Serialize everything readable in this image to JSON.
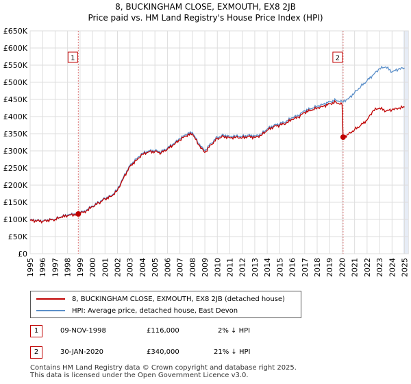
{
  "header": {
    "line1": "8, BUCKINGHAM CLOSE, EXMOUTH, EX8 2JB",
    "line2": "Price paid vs. HM Land Registry's House Price Index (HPI)"
  },
  "chart_data": {
    "type": "line",
    "title": "8, BUCKINGHAM CLOSE, EXMOUTH, EX8 2JB",
    "subtitle": "Price paid vs. HM Land Registry's House Price Index (HPI)",
    "xlabel": "",
    "ylabel": "",
    "xlim": [
      1995,
      2025.3
    ],
    "ylim": [
      0,
      650000
    ],
    "y_ticks": [
      0,
      50000,
      100000,
      150000,
      200000,
      250000,
      300000,
      350000,
      400000,
      450000,
      500000,
      550000,
      600000,
      650000
    ],
    "y_tick_labels": [
      "£0",
      "£50K",
      "£100K",
      "£150K",
      "£200K",
      "£250K",
      "£300K",
      "£350K",
      "£400K",
      "£450K",
      "£500K",
      "£550K",
      "£600K",
      "£650K"
    ],
    "x_ticks": [
      1995,
      1996,
      1997,
      1998,
      1999,
      2000,
      2001,
      2002,
      2003,
      2004,
      2005,
      2006,
      2007,
      2008,
      2009,
      2010,
      2011,
      2012,
      2013,
      2014,
      2015,
      2016,
      2017,
      2018,
      2019,
      2020,
      2021,
      2022,
      2023,
      2024,
      2025
    ],
    "x_tick_labels": [
      "1995",
      "1996",
      "1997",
      "1998",
      "1999",
      "2000",
      "2001",
      "2002",
      "2003",
      "2004",
      "2005",
      "2006",
      "2007",
      "2008",
      "2009",
      "2010",
      "2011",
      "2012",
      "2013",
      "2014",
      "2015",
      "2016",
      "2017",
      "2018",
      "2019",
      "2020",
      "2021",
      "2022",
      "2023",
      "2024",
      "2025"
    ],
    "grid": true,
    "colors": {
      "property": "#c00000",
      "hpi": "#5b8fc9",
      "marker_line": "#dd7777",
      "shade": "#e6ecf6"
    },
    "series": [
      {
        "name": "8, BUCKINGHAM CLOSE, EXMOUTH, EX8 2JB (detached house)",
        "x": [
          1995.0,
          1996.0,
          1997.0,
          1997.5,
          1998.0,
          1998.86,
          1999.5,
          2000.0,
          2000.5,
          2001.0,
          2001.5,
          2002.0,
          2002.5,
          2003.0,
          2003.5,
          2004.0,
          2004.5,
          2005.0,
          2005.5,
          2006.0,
          2006.5,
          2007.0,
          2007.5,
          2008.0,
          2008.5,
          2009.0,
          2009.5,
          2010.0,
          2010.5,
          2011.0,
          2011.5,
          2012.0,
          2012.5,
          2013.0,
          2013.5,
          2014.0,
          2014.5,
          2015.0,
          2015.5,
          2016.0,
          2016.5,
          2017.0,
          2017.5,
          2018.0,
          2018.5,
          2019.0,
          2019.5,
          2020.0,
          2020.08,
          2020.5,
          2021.0,
          2021.5,
          2022.0,
          2022.5,
          2023.0,
          2023.5,
          2024.0,
          2024.5,
          2025.0
        ],
        "values": [
          97000,
          95000,
          100000,
          107000,
          111000,
          116000,
          125000,
          137000,
          148000,
          160000,
          167000,
          185000,
          222000,
          255000,
          272000,
          290000,
          297000,
          298000,
          294000,
          305000,
          318000,
          332000,
          344000,
          350000,
          318000,
          295000,
          318000,
          336000,
          342000,
          338000,
          340000,
          338000,
          342000,
          339000,
          345000,
          360000,
          370000,
          375000,
          380000,
          392000,
          398000,
          412000,
          418000,
          425000,
          430000,
          437000,
          442000,
          435000,
          340000,
          348000,
          362000,
          375000,
          390000,
          418000,
          425000,
          416000,
          420000,
          424000,
          428000
        ]
      },
      {
        "name": "HPI: Average price, detached house, East Devon",
        "x": [
          1995.0,
          1996.0,
          1997.0,
          1997.5,
          1998.0,
          1998.86,
          1999.5,
          2000.0,
          2000.5,
          2001.0,
          2001.5,
          2002.0,
          2002.5,
          2003.0,
          2003.5,
          2004.0,
          2004.5,
          2005.0,
          2005.5,
          2006.0,
          2006.5,
          2007.0,
          2007.5,
          2008.0,
          2008.5,
          2009.0,
          2009.5,
          2010.0,
          2010.5,
          2011.0,
          2011.5,
          2012.0,
          2012.5,
          2013.0,
          2013.5,
          2014.0,
          2014.5,
          2015.0,
          2015.5,
          2016.0,
          2016.5,
          2017.0,
          2017.5,
          2018.0,
          2018.5,
          2019.0,
          2019.5,
          2020.0,
          2020.5,
          2021.0,
          2021.5,
          2022.0,
          2022.5,
          2023.0,
          2023.5,
          2024.0,
          2024.5,
          2025.0
        ],
        "values": [
          98000,
          96000,
          101000,
          108000,
          113000,
          118000,
          127000,
          139000,
          150000,
          162000,
          169000,
          188000,
          225000,
          258000,
          276000,
          293000,
          300000,
          301000,
          297000,
          308000,
          321000,
          336000,
          348000,
          354000,
          322000,
          300000,
          322000,
          340000,
          346000,
          342000,
          344000,
          342000,
          346000,
          343000,
          349000,
          364000,
          374000,
          379000,
          385000,
          397000,
          403000,
          417000,
          423000,
          430000,
          436000,
          443000,
          448000,
          443000,
          452000,
          470000,
          488000,
          505000,
          522000,
          540000,
          545000,
          530000,
          538000,
          542000
        ]
      }
    ],
    "markers": [
      {
        "label": "1",
        "x": 1998.86,
        "value": 116000
      },
      {
        "label": "2",
        "x": 2020.08,
        "value": 340000
      }
    ]
  },
  "legend": {
    "property_label": "8, BUCKINGHAM CLOSE, EXMOUTH, EX8 2JB (detached house)",
    "hpi_label": "HPI: Average price, detached house, East Devon"
  },
  "transactions": [
    {
      "num": "1",
      "date": "09-NOV-1998",
      "price": "£116,000",
      "hpi": "2% ↓ HPI"
    },
    {
      "num": "2",
      "date": "30-JAN-2020",
      "price": "£340,000",
      "hpi": "21% ↓ HPI"
    }
  ],
  "footer": {
    "line1": "Contains HM Land Registry data © Crown copyright and database right 2025.",
    "line2": "This data is licensed under the Open Government Licence v3.0."
  }
}
